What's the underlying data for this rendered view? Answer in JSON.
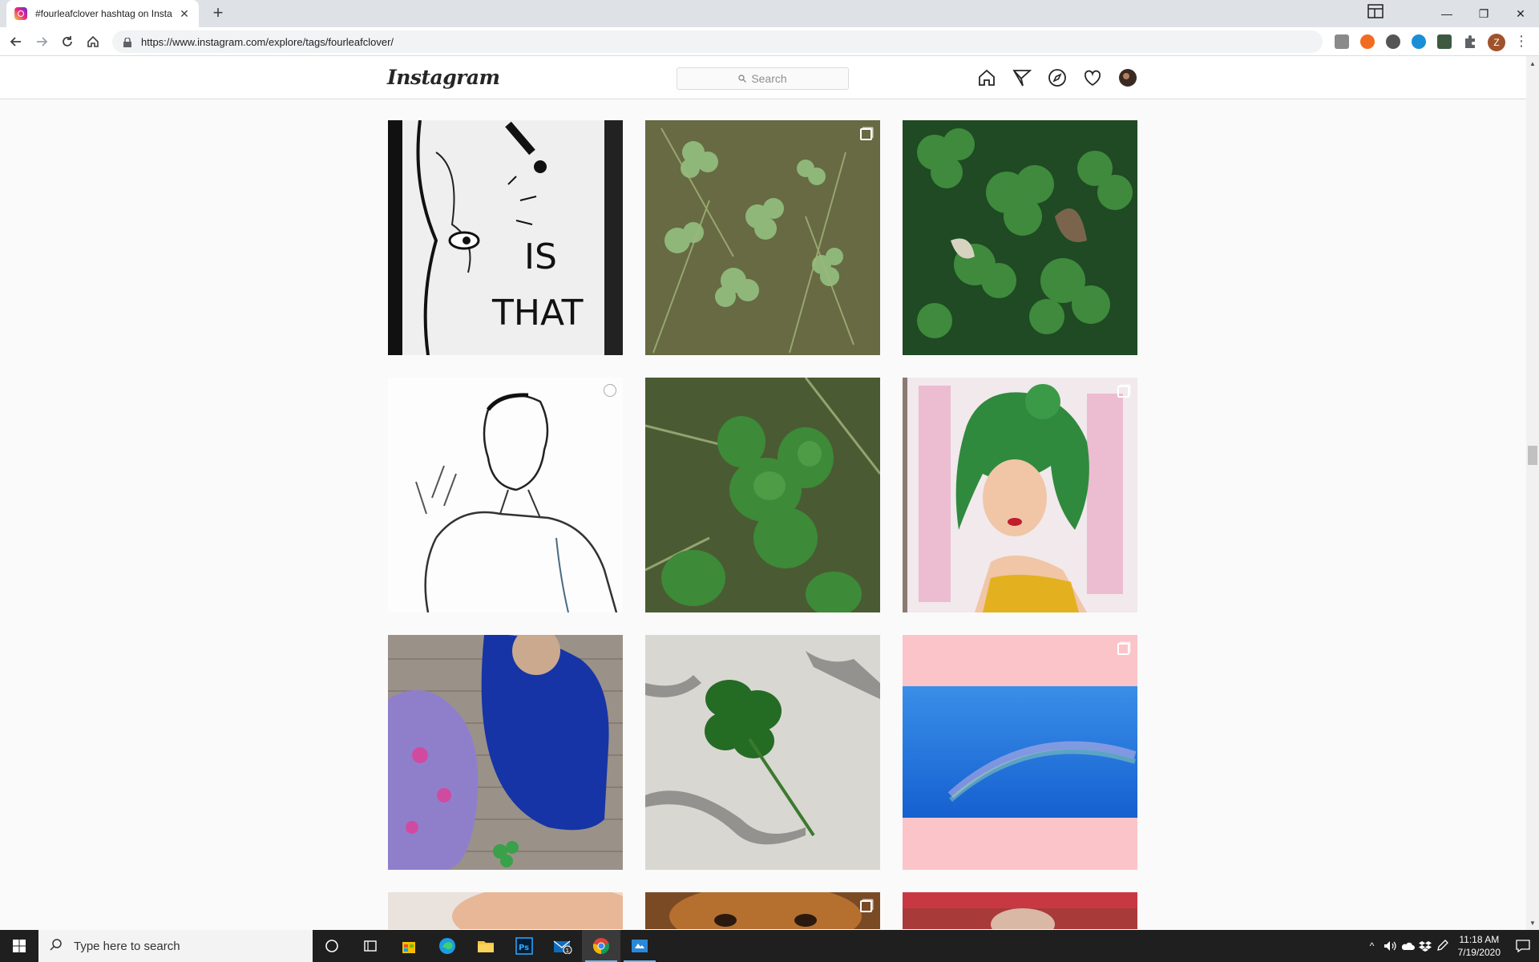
{
  "browser": {
    "tab_title": "#fourleafclover hashtag on Insta",
    "tab_close": "✕",
    "new_tab": "+",
    "url": "https://www.instagram.com/explore/tags/fourleafclover/",
    "profile_initial": "Z",
    "menu": "⋮"
  },
  "window_controls": {
    "minimize": "—",
    "restore": "❐",
    "close": "✕"
  },
  "instagram": {
    "logo": "Instagram",
    "search_placeholder": "Search",
    "search_icon": "🔍"
  },
  "grid": {
    "tiles": [
      {
        "desc": "ink drawing IS THAT",
        "badge": "none",
        "text1": "IS",
        "text2": "THAT"
      },
      {
        "desc": "clover in grass",
        "badge": "multi"
      },
      {
        "desc": "green clover leaves",
        "badge": "none"
      },
      {
        "desc": "pencil sketch man",
        "badge": "video"
      },
      {
        "desc": "clover close-up",
        "badge": "none"
      },
      {
        "desc": "green-haired girl painting",
        "badge": "multi"
      },
      {
        "desc": "children with clover",
        "badge": "none"
      },
      {
        "desc": "clover on cracked concrete",
        "badge": "none"
      },
      {
        "desc": "rainbow sky on pink",
        "badge": "multi"
      },
      {
        "desc": "partial skin",
        "badge": "none"
      },
      {
        "desc": "partial dog",
        "badge": "multi"
      },
      {
        "desc": "partial red",
        "badge": "none"
      }
    ]
  },
  "taskbar": {
    "search_text": "Type here to search",
    "mail_badge": "1",
    "time": "11:18 AM",
    "date": "7/19/2020"
  },
  "colors": {
    "ig_border": "#dbdbdb",
    "taskbar_bg": "#1f1f1f",
    "tab_bar": "#dee1e6"
  }
}
